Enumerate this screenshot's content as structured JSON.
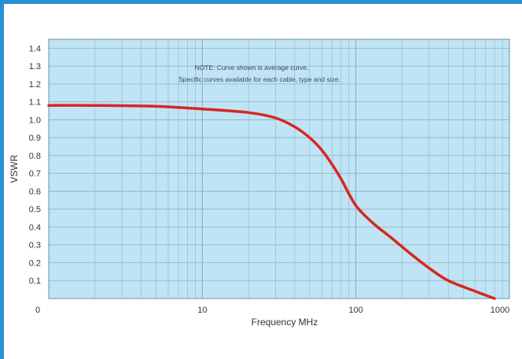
{
  "chart_data": {
    "type": "line",
    "title": "",
    "xlabel": "Frequency MHz",
    "ylabel": "VSWR",
    "xscale": "log",
    "xlim": [
      1,
      1000
    ],
    "ylim": [
      0,
      1.45
    ],
    "grid": true,
    "x_tick_labels": [
      "0",
      "10",
      "100",
      "1000"
    ],
    "y_ticks": [
      0.1,
      0.2,
      0.3,
      0.4,
      0.5,
      0.6,
      0.7,
      0.8,
      0.9,
      1.0,
      1.1,
      1.2,
      1.3,
      1.4
    ],
    "y_tick_labels": [
      "0.1",
      "0.2",
      "0.3",
      "0.4",
      "0.5",
      "0.6",
      "0.7",
      "0.8",
      "0.9",
      "1.0",
      "1.1",
      "1.2",
      "1.3",
      "1.4"
    ],
    "annotation": [
      "NOTE: Curve shown is average curve.",
      "Specific curves available for each cable, type and size."
    ],
    "series": [
      {
        "x": [
          1,
          2,
          5,
          10,
          20,
          30,
          40,
          50,
          60,
          70,
          80,
          100,
          130,
          170,
          220,
          300,
          400,
          600,
          800
        ],
        "y": [
          1.08,
          1.08,
          1.075,
          1.06,
          1.04,
          1.01,
          0.96,
          0.9,
          0.83,
          0.75,
          0.67,
          0.52,
          0.42,
          0.34,
          0.26,
          0.17,
          0.1,
          0.04,
          0.0
        ]
      }
    ],
    "colors": {
      "plot_background": "#bfe4f5",
      "grid": "#8aa4b4",
      "line": "#d6271f",
      "frame": "#2a8fd0"
    }
  }
}
